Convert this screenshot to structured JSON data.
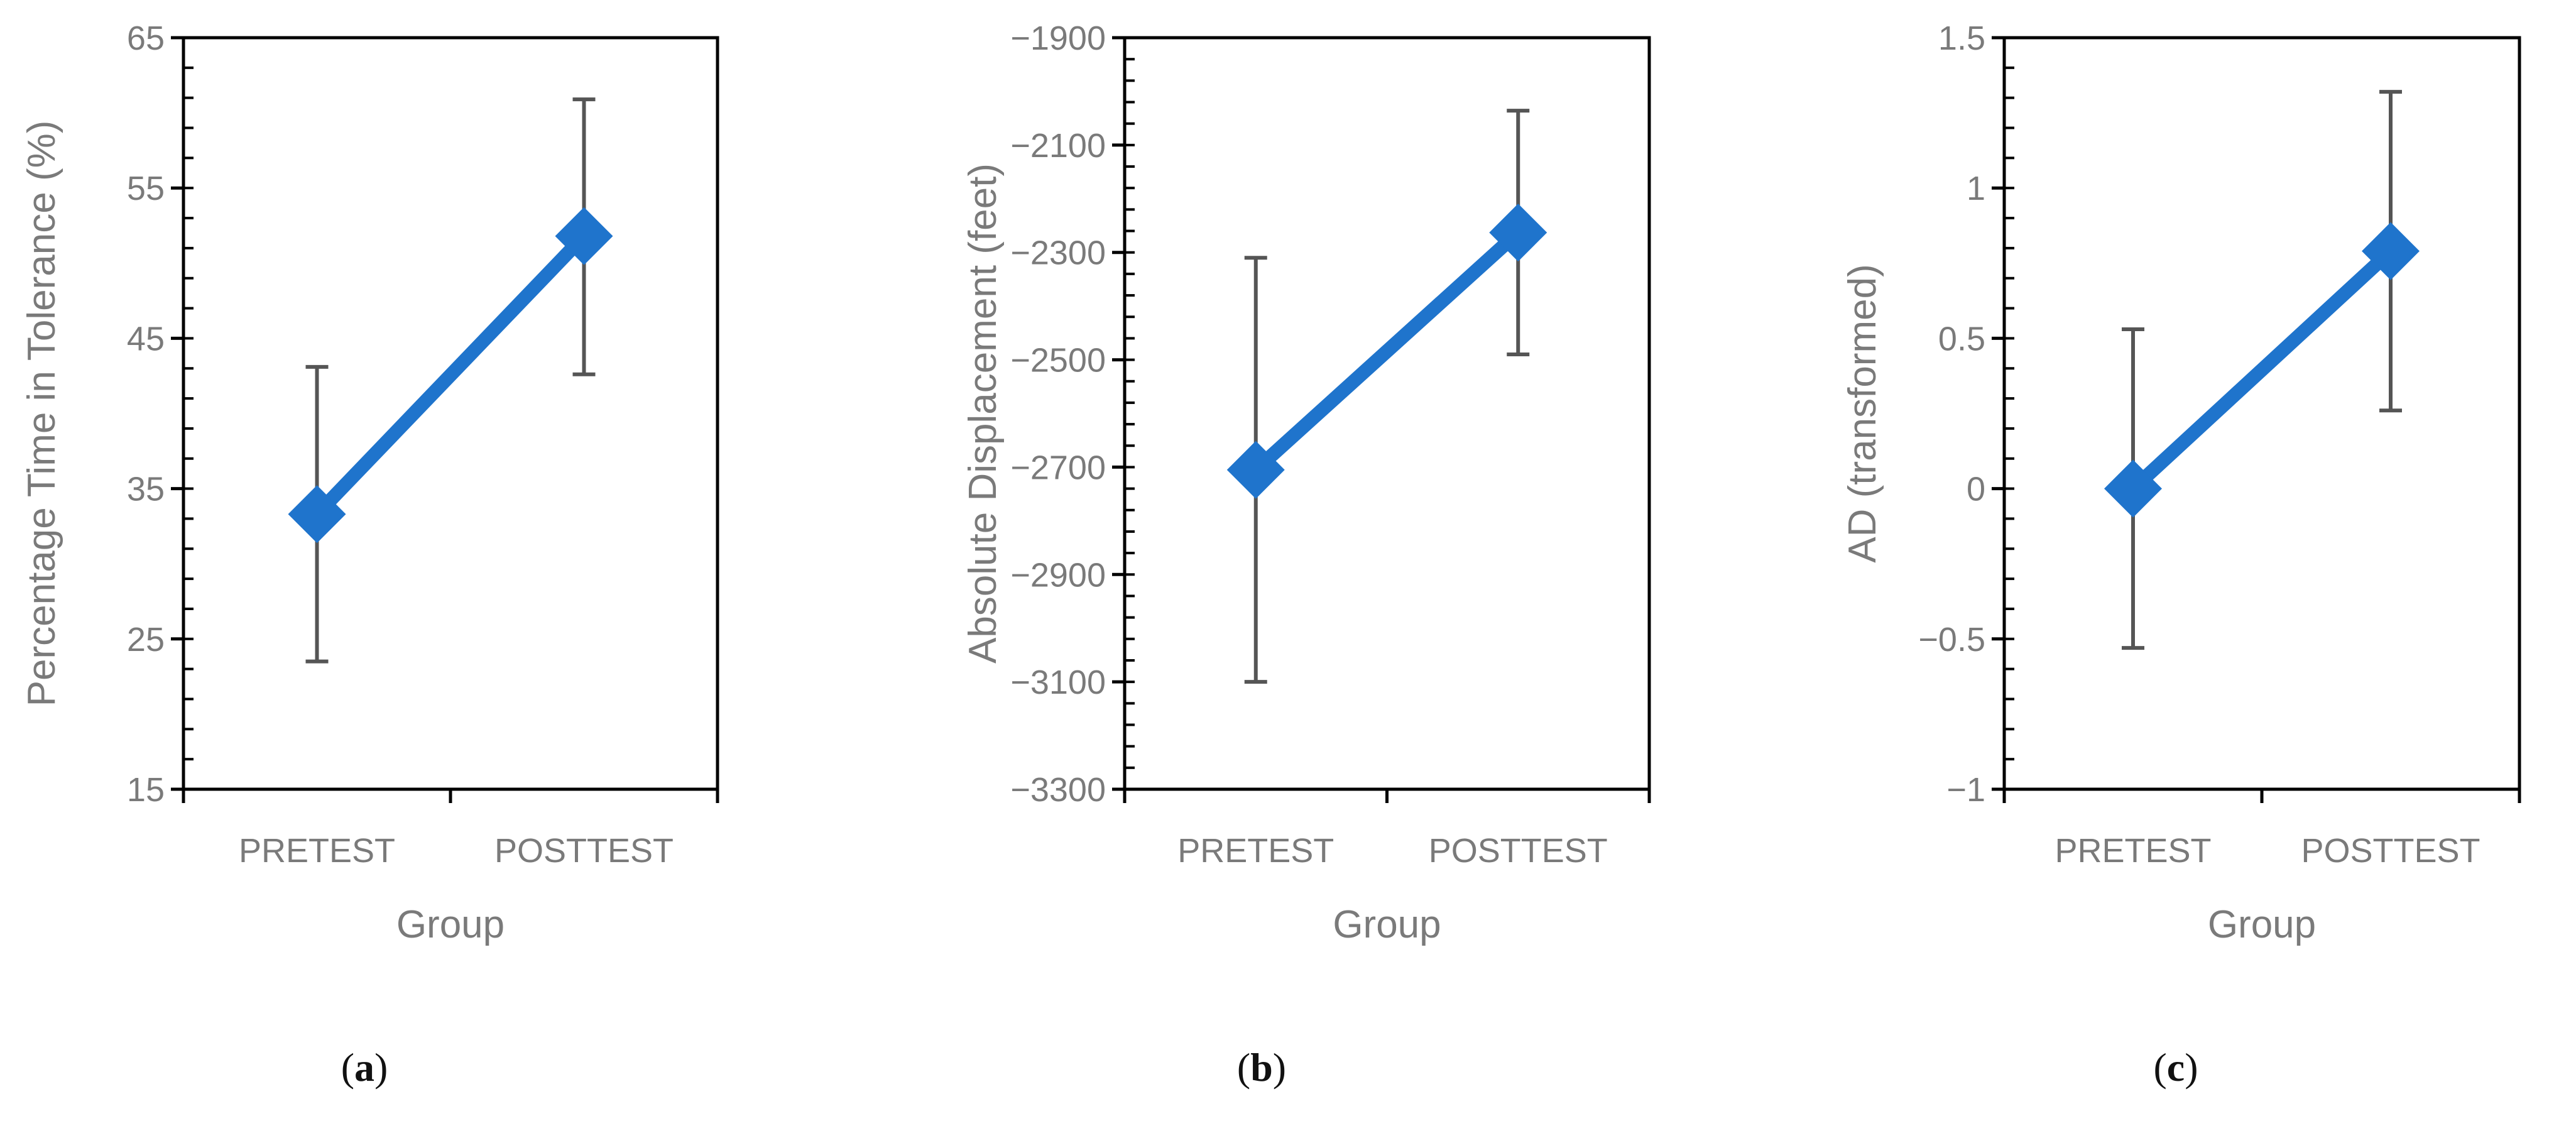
{
  "colors": {
    "series": "#1f74cc",
    "error_bar": "#555555",
    "axis": "#000000",
    "text": "#7a7a7a"
  },
  "chart_data": [
    {
      "type": "line",
      "panel_label": "a",
      "categories": [
        "PRETEST",
        "POSTTEST"
      ],
      "series": [
        {
          "values": [
            33.3,
            51.8
          ],
          "error": [
            [
              23.5,
              43.1
            ],
            [
              42.6,
              60.9
            ]
          ],
          "marker": "diamond"
        }
      ],
      "xlabel": "Group",
      "ylabel": "Percentage Time in Tolerance (%)",
      "ylim": [
        15,
        65
      ],
      "yticks": [
        15,
        25,
        35,
        45,
        55,
        65
      ],
      "ytick_labels": [
        "15",
        "25",
        "35",
        "45",
        "55",
        "65"
      ],
      "minor_step": 2,
      "grid": false
    },
    {
      "type": "line",
      "panel_label": "b",
      "categories": [
        "PRETEST",
        "POSTTEST"
      ],
      "series": [
        {
          "values": [
            -2705,
            -2263
          ],
          "error": [
            [
              -3100,
              -2310
            ],
            [
              -2490,
              -2036
            ]
          ],
          "marker": "diamond"
        }
      ],
      "xlabel": "Group",
      "ylabel": "Absolute Displacement (feet)",
      "ylim": [
        -3300,
        -1900
      ],
      "yticks": [
        -3300,
        -3100,
        -2900,
        -2700,
        -2500,
        -2300,
        -2100,
        -1900
      ],
      "ytick_labels": [
        "−3300",
        "−3100",
        "−2900",
        "−2700",
        "−2500",
        "−2300",
        "−2100",
        "−1900"
      ],
      "minor_step": 40,
      "grid": false
    },
    {
      "type": "line",
      "panel_label": "c",
      "categories": [
        "PRETEST",
        "POSTTEST"
      ],
      "series": [
        {
          "values": [
            0.0,
            0.79
          ],
          "error": [
            [
              -0.53,
              0.53
            ],
            [
              0.26,
              1.32
            ]
          ],
          "marker": "diamond"
        }
      ],
      "xlabel": "Group",
      "ylabel": "AD (transformed)",
      "ylim": [
        -1,
        1.5
      ],
      "yticks": [
        -1,
        -0.5,
        0,
        0.5,
        1,
        1.5
      ],
      "ytick_labels": [
        "−1",
        "−0.5",
        "0",
        "0.5",
        "1",
        "1.5"
      ],
      "minor_step": 0.1,
      "grid": false
    }
  ]
}
